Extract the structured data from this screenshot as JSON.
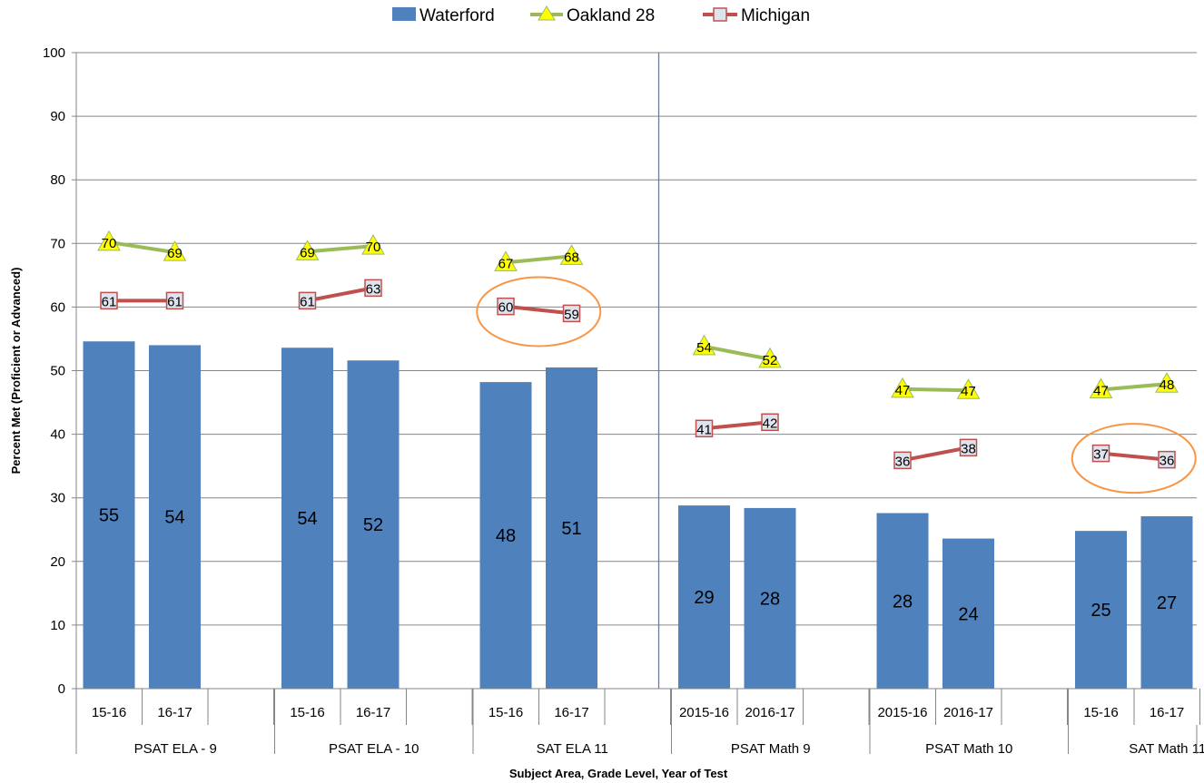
{
  "chart_data": {
    "type": "bar",
    "xlabel": "Subject Area, Grade Level, Year of Test",
    "ylabel": "Percent Met (Proficient or Advanced)",
    "ylim": [
      0,
      100
    ],
    "yticks": [
      0,
      10,
      20,
      30,
      40,
      50,
      60,
      70,
      80,
      90,
      100
    ],
    "grid": true,
    "legend_position": "top",
    "groups": [
      {
        "name": "PSAT ELA - 9",
        "years": [
          "15-16",
          "16-17"
        ]
      },
      {
        "name": "PSAT ELA - 10",
        "years": [
          "15-16",
          "16-17"
        ]
      },
      {
        "name": "SAT ELA 11",
        "years": [
          "15-16",
          "16-17"
        ]
      },
      {
        "name": "PSAT Math 9",
        "years": [
          "2015-16",
          "2016-17"
        ]
      },
      {
        "name": "PSAT Math 10",
        "years": [
          "2015-16",
          "2016-17"
        ]
      },
      {
        "name": "SAT Math 11",
        "years": [
          "15-16",
          "16-17"
        ]
      }
    ],
    "series": [
      {
        "name": "Waterford",
        "kind": "bar",
        "color": "#4f81bd",
        "values": [
          [
            54.6,
            54.0
          ],
          [
            53.6,
            51.6
          ],
          [
            48.2,
            50.5
          ],
          [
            28.8,
            28.4
          ],
          [
            27.6,
            23.6
          ],
          [
            24.8,
            27.1
          ]
        ],
        "labels": [
          [
            "55",
            "54"
          ],
          [
            "54",
            "52"
          ],
          [
            "48",
            "51"
          ],
          [
            "29",
            "28"
          ],
          [
            "28",
            "24"
          ],
          [
            "25",
            "27"
          ]
        ]
      },
      {
        "name": "Oakland 28",
        "kind": "line",
        "color": "#9bbb59",
        "marker_color": "#ffff00",
        "values": [
          [
            70.2,
            68.6
          ],
          [
            68.7,
            69.6
          ],
          [
            67.0,
            68.0
          ],
          [
            53.8,
            51.8
          ],
          [
            47.1,
            46.9
          ],
          [
            47.0,
            47.9
          ]
        ],
        "labels": [
          [
            "70",
            "69"
          ],
          [
            "69",
            "70"
          ],
          [
            "67",
            "68"
          ],
          [
            "54",
            "52"
          ],
          [
            "47",
            "47"
          ],
          [
            "47",
            "48"
          ]
        ]
      },
      {
        "name": "Michigan",
        "kind": "line",
        "color": "#c0504d",
        "marker_color": "#dfe3ee",
        "values": [
          [
            61.0,
            61.0
          ],
          [
            61.0,
            63.0
          ],
          [
            60.1,
            59.0
          ],
          [
            40.9,
            41.9
          ],
          [
            35.9,
            37.9
          ],
          [
            37.0,
            36.0
          ]
        ],
        "labels": [
          [
            "61",
            "61"
          ],
          [
            "61",
            "63"
          ],
          [
            "60",
            "59"
          ],
          [
            "41",
            "42"
          ],
          [
            "36",
            "38"
          ],
          [
            "37",
            "36"
          ]
        ]
      }
    ],
    "annotations": [
      {
        "type": "ellipse",
        "group": 2,
        "series": "Michigan",
        "color": "#f79646"
      },
      {
        "type": "ellipse",
        "group": 5,
        "series": "Michigan",
        "color": "#f79646"
      }
    ],
    "divider_after_group": 2
  }
}
